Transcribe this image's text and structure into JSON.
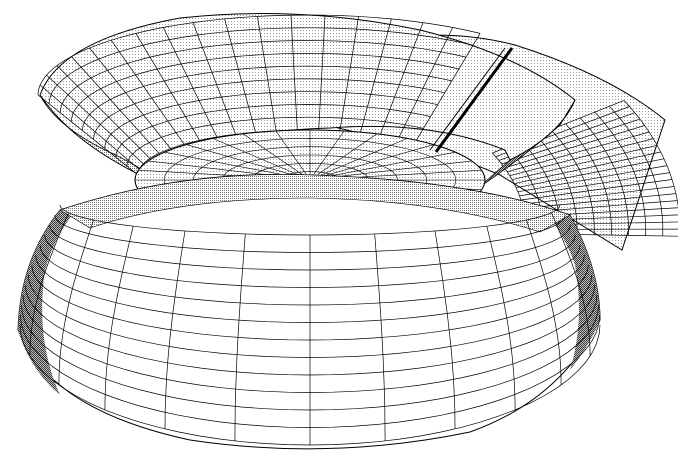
{
  "figure": {
    "kind": "wireframe-surface",
    "style": "monochrome line drawing with halftone dither shading",
    "components": [
      {
        "name": "lower-dome",
        "meridians": 24,
        "parallels": 12
      },
      {
        "name": "neck-disc",
        "meridians": 32,
        "parallels": 6
      },
      {
        "name": "upper-cone",
        "meridians": 36,
        "parallels": 9,
        "cut_sector": true
      },
      {
        "name": "flap",
        "meridians": 20,
        "parallels": 9
      }
    ]
  },
  "colors": {
    "background": "#ffffff",
    "line": "#000000",
    "shade_light": "#9a9a9a",
    "shade_dark": "#3a3a3a"
  }
}
